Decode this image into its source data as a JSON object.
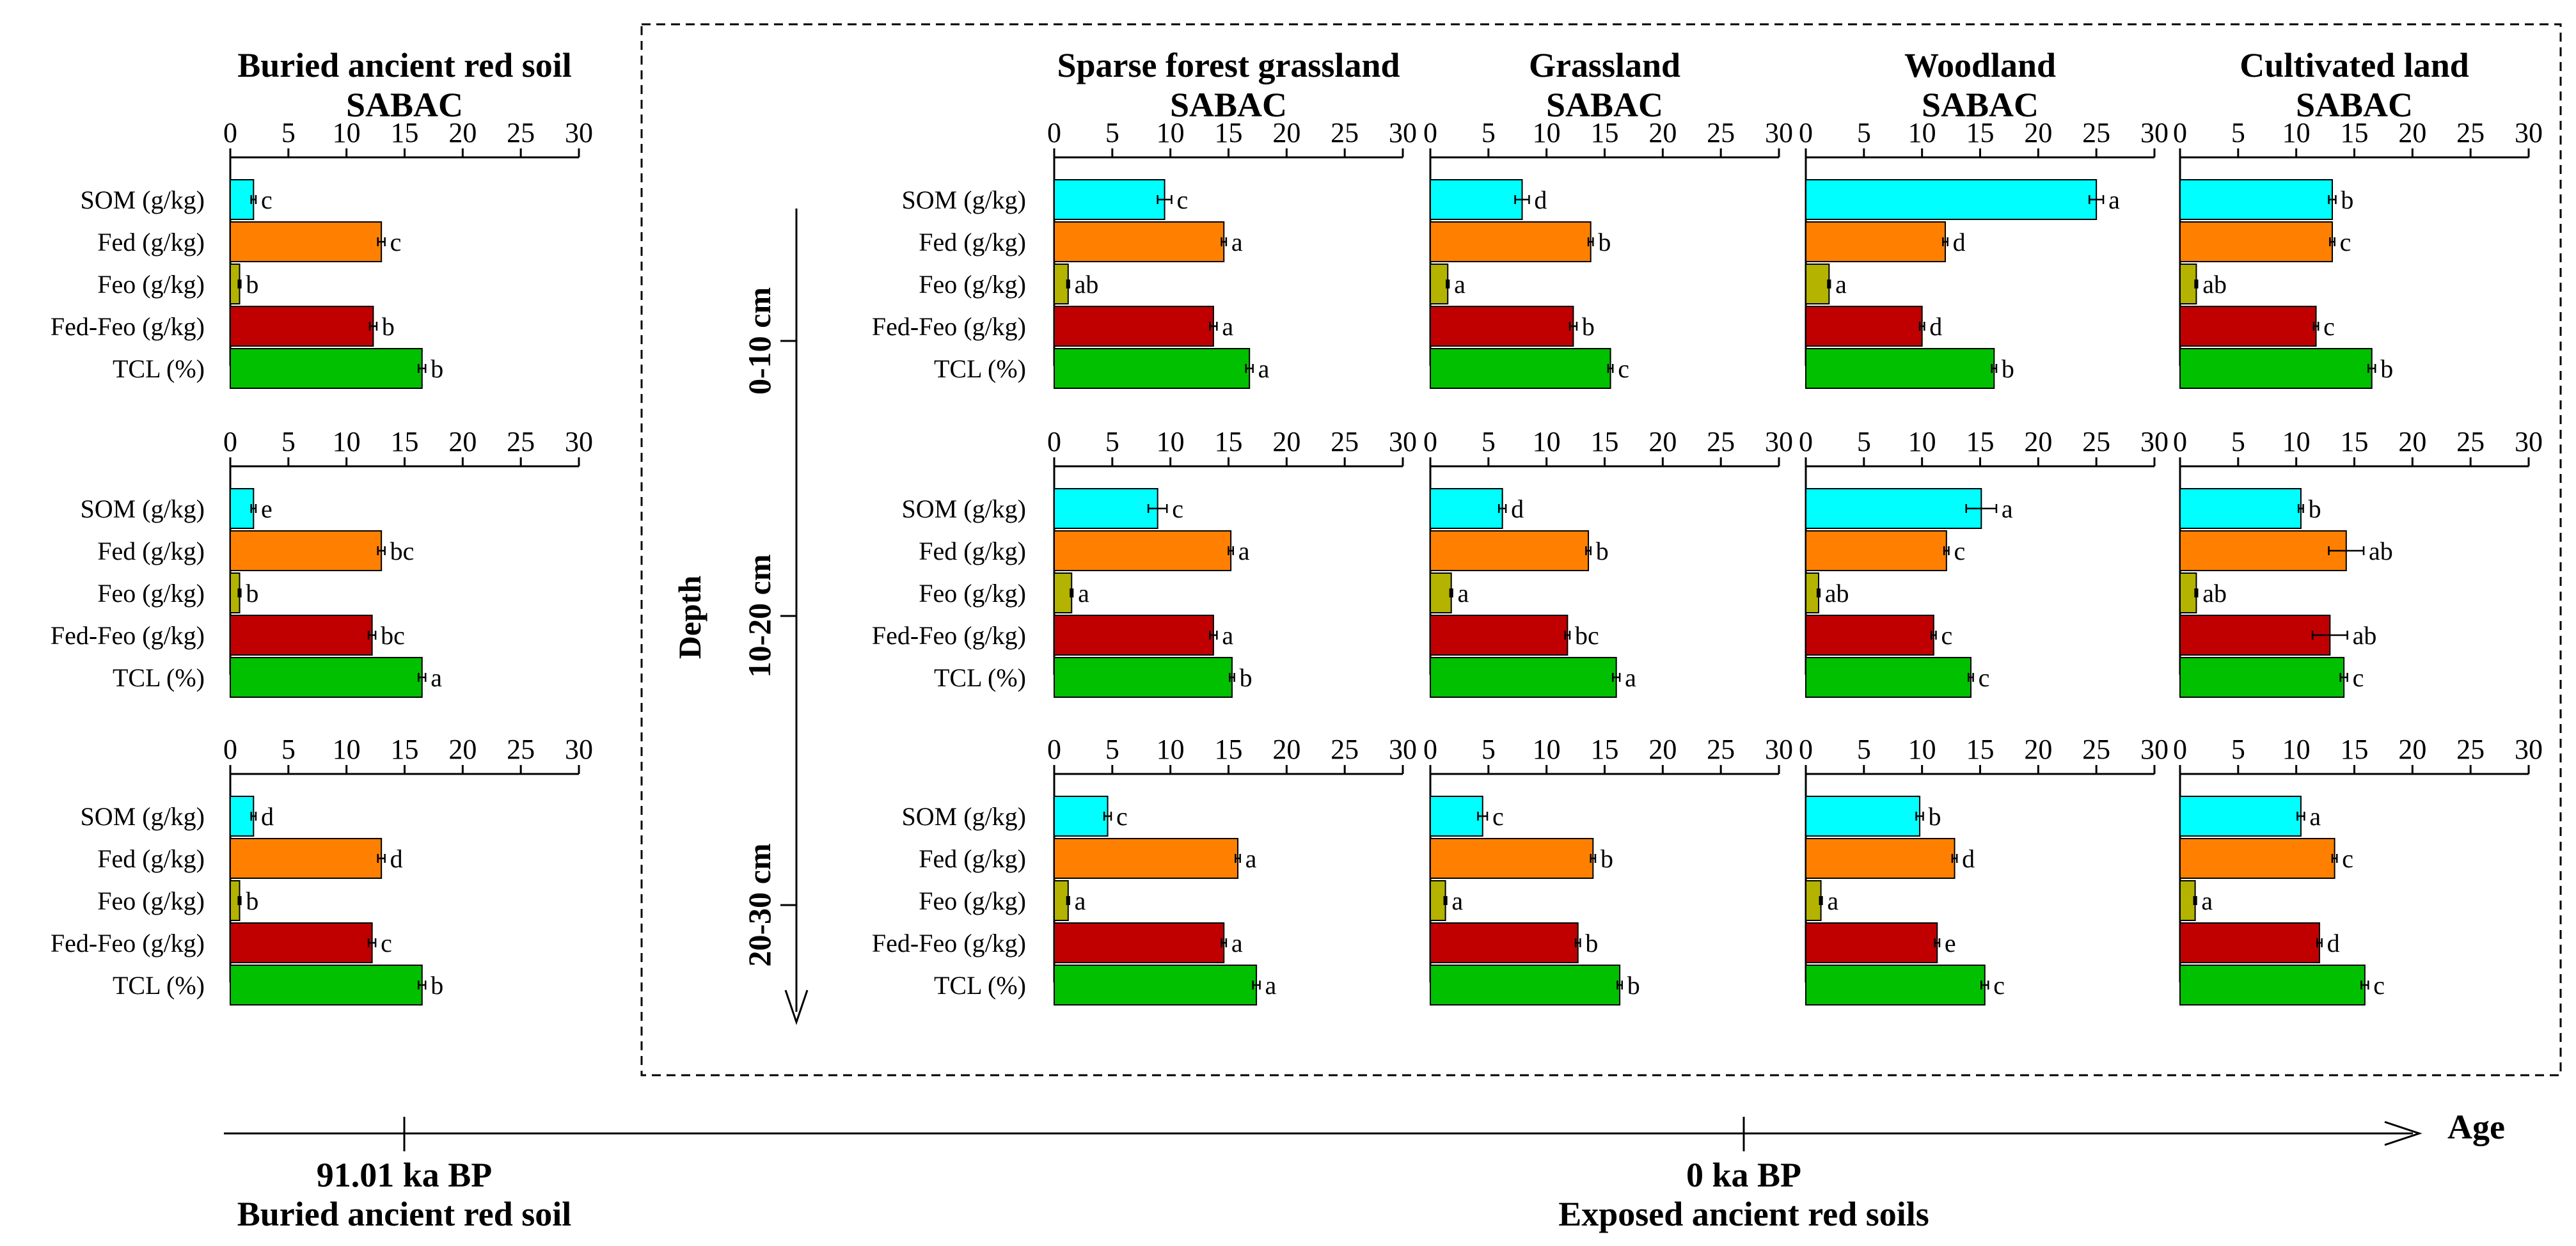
{
  "chart_data": {
    "type": "bar",
    "orientation": "horizontal",
    "categories": [
      "SOM (g/kg)",
      "Fed (g/kg)",
      "Feo (g/kg)",
      "Fed-Feo (g/kg)",
      "TCL (%)"
    ],
    "category_colors": [
      "#00FFFF",
      "#FF8000",
      "#B3B300",
      "#C00000",
      "#00C000"
    ],
    "xlim": [
      0,
      30
    ],
    "xticks": [
      "0",
      "5",
      "10",
      "15",
      "20",
      "25",
      "30"
    ],
    "columns": [
      {
        "title_line1": "Buried ancient red soil",
        "title_line2": "SABAC",
        "panels": [
          {
            "values": [
              2.0,
              13.0,
              0.8,
              12.3,
              16.5
            ],
            "errors": [
              0.2,
              0.3,
              0.1,
              0.3,
              0.3
            ],
            "letters": [
              "c",
              "c",
              "b",
              "b",
              "b"
            ]
          },
          {
            "values": [
              2.0,
              13.0,
              0.8,
              12.2,
              16.5
            ],
            "errors": [
              0.2,
              0.3,
              0.1,
              0.3,
              0.3
            ],
            "letters": [
              "e",
              "bc",
              "b",
              "bc",
              "a"
            ]
          },
          {
            "values": [
              2.0,
              13.0,
              0.8,
              12.2,
              16.5
            ],
            "errors": [
              0.2,
              0.3,
              0.1,
              0.3,
              0.3
            ],
            "letters": [
              "d",
              "d",
              "b",
              "c",
              "b"
            ]
          }
        ]
      },
      {
        "title_line1": "Sparse forest grassland",
        "title_line2": "SABAC",
        "panels": [
          {
            "values": [
              9.5,
              14.6,
              1.2,
              13.7,
              16.8
            ],
            "errors": [
              0.6,
              0.2,
              0.1,
              0.3,
              0.3
            ],
            "letters": [
              "c",
              "a",
              "ab",
              "a",
              "a"
            ]
          },
          {
            "values": [
              8.9,
              15.2,
              1.5,
              13.7,
              15.3
            ],
            "errors": [
              0.8,
              0.2,
              0.1,
              0.3,
              0.2
            ],
            "letters": [
              "c",
              "a",
              "a",
              "a",
              "b"
            ]
          },
          {
            "values": [
              4.6,
              15.8,
              1.2,
              14.6,
              17.4
            ],
            "errors": [
              0.3,
              0.2,
              0.1,
              0.2,
              0.3
            ],
            "letters": [
              "c",
              "a",
              "a",
              "a",
              "a"
            ]
          }
        ]
      },
      {
        "title_line1": "Grassland",
        "title_line2": "SABAC",
        "panels": [
          {
            "values": [
              7.9,
              13.8,
              1.5,
              12.3,
              15.5
            ],
            "errors": [
              0.6,
              0.2,
              0.1,
              0.3,
              0.2
            ],
            "letters": [
              "d",
              "b",
              "a",
              "b",
              "c"
            ]
          },
          {
            "values": [
              6.2,
              13.6,
              1.8,
              11.8,
              16.0
            ],
            "errors": [
              0.3,
              0.2,
              0.1,
              0.2,
              0.3
            ],
            "letters": [
              "d",
              "b",
              "a",
              "bc",
              "a"
            ]
          },
          {
            "values": [
              4.5,
              14.0,
              1.3,
              12.7,
              16.3
            ],
            "errors": [
              0.4,
              0.2,
              0.1,
              0.2,
              0.2
            ],
            "letters": [
              "c",
              "b",
              "a",
              "b",
              "b"
            ]
          }
        ]
      },
      {
        "title_line1": "Woodland",
        "title_line2": "SABAC",
        "panels": [
          {
            "values": [
              25.0,
              12.0,
              2.0,
              10.0,
              16.2
            ],
            "errors": [
              0.6,
              0.2,
              0.1,
              0.2,
              0.2
            ],
            "letters": [
              "a",
              "d",
              "a",
              "d",
              "b"
            ]
          },
          {
            "values": [
              15.1,
              12.1,
              1.1,
              11.0,
              14.2
            ],
            "errors": [
              1.3,
              0.2,
              0.1,
              0.2,
              0.2
            ],
            "letters": [
              "a",
              "c",
              "ab",
              "c",
              "c"
            ]
          },
          {
            "values": [
              9.8,
              12.8,
              1.3,
              11.3,
              15.4
            ],
            "errors": [
              0.3,
              0.2,
              0.1,
              0.2,
              0.3
            ],
            "letters": [
              "b",
              "d",
              "a",
              "e",
              "c"
            ]
          }
        ]
      },
      {
        "title_line1": "Cultivated land",
        "title_line2": "SABAC",
        "panels": [
          {
            "values": [
              13.1,
              13.1,
              1.4,
              11.7,
              16.5
            ],
            "errors": [
              0.3,
              0.2,
              0.1,
              0.2,
              0.3
            ],
            "letters": [
              "b",
              "c",
              "ab",
              "c",
              "b"
            ]
          },
          {
            "values": [
              10.4,
              14.3,
              1.4,
              12.9,
              14.1
            ],
            "errors": [
              0.2,
              1.5,
              0.1,
              1.5,
              0.3
            ],
            "letters": [
              "b",
              "ab",
              "ab",
              "ab",
              "c"
            ]
          },
          {
            "values": [
              10.4,
              13.3,
              1.3,
              12.0,
              15.9
            ],
            "errors": [
              0.3,
              0.2,
              0.1,
              0.2,
              0.3
            ],
            "letters": [
              "a",
              "c",
              "a",
              "d",
              "c"
            ]
          }
        ]
      }
    ],
    "depth_label": "Depth",
    "depth_levels": [
      "0-10 cm",
      "10-20 cm",
      "20-30 cm"
    ],
    "age_axis": {
      "label": "Age",
      "markers": [
        {
          "age": "91.01 ka BP",
          "name": "Buried ancient red soil"
        },
        {
          "age": "0 ka BP",
          "name": "Exposed ancient red soils"
        }
      ]
    }
  }
}
